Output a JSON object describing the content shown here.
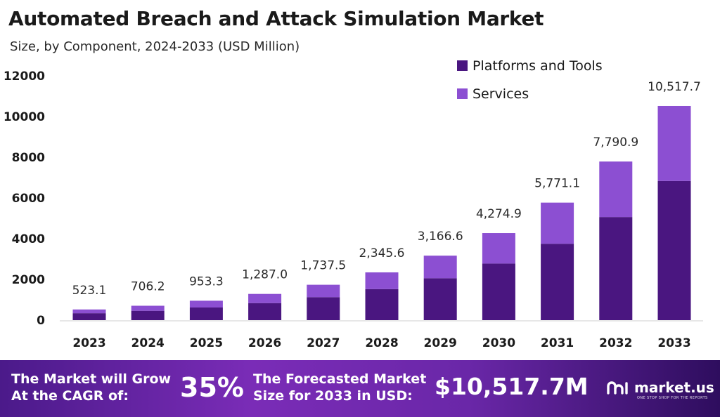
{
  "chart_data": {
    "type": "bar",
    "stacked": true,
    "title": "Automated Breach and Attack Simulation Market",
    "subtitle": "Size, by Component, 2024-2033 (USD Million)",
    "xlabel": "",
    "ylabel": "",
    "ylim": [
      0,
      12000
    ],
    "yticks": [
      0,
      2000,
      4000,
      6000,
      8000,
      10000,
      12000
    ],
    "categories": [
      "2023",
      "2024",
      "2025",
      "2026",
      "2027",
      "2028",
      "2029",
      "2030",
      "2031",
      "2032",
      "2033"
    ],
    "series": [
      {
        "name": "Platforms and Tools",
        "color": "#4a1680",
        "values": [
          340,
          459,
          620,
          837,
          1129,
          1525,
          2058,
          2779,
          3751,
          5064,
          6836
        ]
      },
      {
        "name": "Services",
        "color": "#8c4fd2",
        "values": [
          183.1,
          247.2,
          333.3,
          450.0,
          608.5,
          820.6,
          1108.6,
          1495.9,
          2020.1,
          2726.9,
          3681.7
        ]
      }
    ],
    "totals": [
      523.1,
      706.2,
      953.3,
      1287.0,
      1737.5,
      2345.6,
      3166.6,
      4274.9,
      5771.1,
      7790.9,
      10517.7
    ],
    "total_labels": [
      "523.1",
      "706.2",
      "953.3",
      "1,287.0",
      "1,737.5",
      "2,345.6",
      "3,166.6",
      "4,274.9",
      "5,771.1",
      "7,790.9",
      "10,517.7"
    ],
    "legend_position": "top-right"
  },
  "banner": {
    "cagr_text_line1": "The Market will Grow",
    "cagr_text_line2": "At the CAGR of:",
    "cagr_value": "35%",
    "forecast_text_line1": "The Forecasted Market",
    "forecast_text_line2": "Size for 2033 in USD:",
    "forecast_value": "$10,517.7M",
    "brand_name": "market.us",
    "brand_tagline": "ONE STOP SHOP FOR THE REPORTS"
  }
}
